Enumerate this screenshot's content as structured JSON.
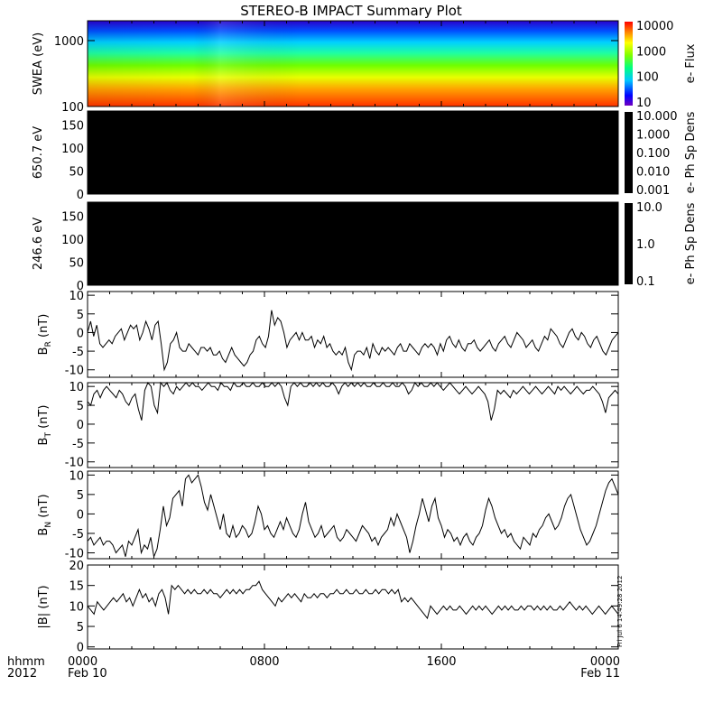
{
  "title": "STEREO-B IMPACT Summary Plot",
  "chart_data": [
    {
      "type": "heatmap",
      "ylabel": "SWEA (eV)",
      "ylim": [
        100,
        2000
      ],
      "y_log": true,
      "yticks": [
        "1000",
        "100"
      ],
      "colorbar": {
        "label": "e- Flux",
        "ticks": [
          "10000",
          "1000",
          "100",
          "10"
        ],
        "scale": "log",
        "range": [
          10,
          10000
        ]
      }
    },
    {
      "type": "heatmap",
      "ylabel": "650.7 eV",
      "ylim": [
        0,
        180
      ],
      "yticks": [
        "0",
        "50",
        "100",
        "150"
      ],
      "fill": "#000000",
      "colorbar": {
        "label": "e- Ph Sp Dens",
        "ticks": [
          "10.000",
          "1.000",
          "0.100",
          "0.010",
          "0.001"
        ],
        "scale": "log",
        "range": [
          0.001,
          10
        ]
      }
    },
    {
      "type": "heatmap",
      "ylabel": "246.6 eV",
      "ylim": [
        0,
        180
      ],
      "yticks": [
        "0",
        "50",
        "100",
        "150"
      ],
      "fill": "#000000",
      "colorbar": {
        "label": "e- Ph Sp Dens",
        "ticks": [
          "10.0",
          "1.0",
          "0.1"
        ],
        "scale": "log",
        "range": [
          0.1,
          10
        ]
      }
    },
    {
      "type": "line",
      "ylabel_main": "B",
      "ylabel_sub": "R",
      "ylabel_unit": " (nT)",
      "ylim": [
        -12,
        11
      ],
      "yticks": [
        "10",
        "5",
        "0",
        "-5",
        "-10"
      ],
      "series": [
        {
          "values": [
            0,
            3,
            -1,
            2,
            -3,
            -4,
            -3,
            -2,
            -3,
            -1,
            0,
            1,
            -2,
            0,
            2,
            1,
            2,
            -2,
            0,
            3,
            1,
            -2,
            2,
            3,
            -3,
            -10,
            -8,
            -3,
            -2,
            0,
            -4,
            -5,
            -5,
            -3,
            -4,
            -5,
            -6,
            -4,
            -4,
            -5,
            -4,
            -6,
            -6,
            -5,
            -7,
            -8,
            -6,
            -4,
            -6,
            -7,
            -8,
            -9,
            -8,
            -6,
            -5,
            -2,
            -1,
            -3,
            -4,
            -1,
            6,
            2,
            4,
            3,
            0,
            -4,
            -2,
            -1,
            0,
            -2,
            0,
            -2,
            -2,
            -1,
            -4,
            -2,
            -3,
            -1,
            -4,
            -3,
            -5,
            -6,
            -5,
            -6,
            -4,
            -8,
            -10,
            -6,
            -5,
            -5,
            -6,
            -4,
            -7,
            -3,
            -5,
            -6,
            -4,
            -5,
            -4,
            -5,
            -6,
            -4,
            -3,
            -5,
            -5,
            -3,
            -4,
            -5,
            -6,
            -4,
            -3,
            -4,
            -3,
            -4,
            -6,
            -3,
            -5,
            -2,
            -1,
            -3,
            -4,
            -2,
            -4,
            -5,
            -3,
            -3,
            -2,
            -4,
            -5,
            -4,
            -3,
            -2,
            -4,
            -5,
            -3,
            -2,
            -1,
            -3,
            -4,
            -2,
            0,
            -1,
            -2,
            -4,
            -3,
            -2,
            -4,
            -5,
            -3,
            -1,
            -2,
            1,
            0,
            -1,
            -3,
            -4,
            -2,
            0,
            1,
            -1,
            -2,
            0,
            -1,
            -3,
            -4,
            -2,
            -1,
            -3,
            -5,
            -6,
            -4,
            -2,
            -1,
            0
          ]
        }
      ]
    },
    {
      "type": "line",
      "ylabel_main": "B",
      "ylabel_sub": "T",
      "ylabel_unit": " (nT)",
      "ylim": [
        -11.5,
        11
      ],
      "yticks": [
        "10",
        "5",
        "0",
        "-5",
        "-10"
      ],
      "series": [
        {
          "values": [
            6,
            5,
            8,
            9,
            7,
            9,
            10,
            9,
            8,
            7,
            9,
            8,
            6,
            5,
            7,
            8,
            4,
            1,
            9,
            11,
            10,
            5,
            3,
            11,
            10,
            11,
            9,
            8,
            10,
            9,
            10,
            11,
            10,
            11,
            10,
            10,
            9,
            10,
            11,
            10,
            10,
            9,
            11,
            10,
            10,
            9,
            11,
            10,
            10,
            11,
            10,
            10,
            11,
            10,
            10,
            11,
            10,
            10,
            11,
            10,
            11,
            10,
            7,
            5,
            10,
            11,
            10,
            11,
            10,
            10,
            11,
            10,
            11,
            10,
            11,
            10,
            10,
            11,
            10,
            8,
            10,
            11,
            10,
            11,
            10,
            11,
            10,
            11,
            10,
            10,
            11,
            10,
            10,
            11,
            10,
            10,
            11,
            10,
            10,
            11,
            10,
            8,
            9,
            11,
            10,
            11,
            10,
            10,
            11,
            10,
            11,
            10,
            9,
            10,
            11,
            10,
            9,
            8,
            9,
            10,
            9,
            8,
            9,
            10,
            9,
            8,
            6,
            1,
            4,
            9,
            8,
            9,
            8,
            7,
            9,
            8,
            9,
            10,
            9,
            8,
            9,
            10,
            9,
            8,
            9,
            10,
            9,
            8,
            10,
            9,
            10,
            9,
            8,
            9,
            10,
            9,
            8,
            9,
            9,
            10,
            9,
            8,
            6,
            3,
            7,
            8,
            9,
            8
          ]
        }
      ]
    },
    {
      "type": "line",
      "ylabel_main": "B",
      "ylabel_sub": "N",
      "ylabel_unit": " (nT)",
      "ylim": [
        -11.5,
        11
      ],
      "yticks": [
        "10",
        "5",
        "0",
        "-5",
        "-10"
      ],
      "series": [
        {
          "values": [
            -7,
            -6,
            -8,
            -7,
            -6,
            -8,
            -7,
            -7,
            -8,
            -10,
            -9,
            -8,
            -11,
            -7,
            -8,
            -6,
            -4,
            -10,
            -8,
            -9,
            -6,
            -11,
            -9,
            -4,
            2,
            -3,
            -1,
            4,
            5,
            6,
            2,
            9,
            10,
            8,
            9,
            10,
            7,
            3,
            1,
            5,
            2,
            -1,
            -4,
            0,
            -5,
            -6,
            -3,
            -6,
            -5,
            -3,
            -4,
            -6,
            -5,
            -2,
            2,
            0,
            -4,
            -3,
            -5,
            -6,
            -4,
            -2,
            -4,
            -1,
            -3,
            -5,
            -6,
            -4,
            0,
            3,
            -2,
            -4,
            -6,
            -5,
            -3,
            -6,
            -5,
            -4,
            -3,
            -6,
            -7,
            -6,
            -4,
            -5,
            -6,
            -7,
            -5,
            -3,
            -4,
            -5,
            -7,
            -6,
            -8,
            -6,
            -5,
            -4,
            -1,
            -3,
            0,
            -2,
            -4,
            -6,
            -10,
            -7,
            -3,
            0,
            4,
            1,
            -2,
            2,
            4,
            -1,
            -3,
            -6,
            -4,
            -5,
            -7,
            -6,
            -8,
            -6,
            -5,
            -7,
            -8,
            -6,
            -5,
            -3,
            1,
            4,
            2,
            -1,
            -3,
            -5,
            -4,
            -6,
            -5,
            -7,
            -8,
            -9,
            -6,
            -7,
            -8,
            -5,
            -6,
            -4,
            -3,
            -1,
            0,
            -2,
            -4,
            -3,
            -1,
            2,
            4,
            5,
            2,
            -1,
            -4,
            -6,
            -8,
            -7,
            -5,
            -3,
            0,
            3,
            6,
            8,
            9,
            7,
            5
          ]
        }
      ]
    },
    {
      "type": "line",
      "ylabel_main": "|B|",
      "ylabel_sub": "",
      "ylabel_unit": " (nT)",
      "ylim": [
        -0.5,
        20
      ],
      "yticks": [
        "20",
        "15",
        "10",
        "5",
        "0"
      ],
      "series": [
        {
          "values": [
            10,
            9,
            8,
            11,
            10,
            9,
            10,
            11,
            12,
            11,
            12,
            13,
            11,
            12,
            10,
            12,
            14,
            12,
            13,
            11,
            12,
            10,
            13,
            14,
            12,
            8,
            15,
            14,
            15,
            14,
            13,
            14,
            13,
            14,
            13,
            13,
            14,
            13,
            14,
            13,
            13,
            12,
            13,
            14,
            13,
            14,
            13,
            14,
            13,
            14,
            14,
            15,
            15,
            16,
            14,
            13,
            12,
            11,
            10,
            12,
            11,
            12,
            13,
            12,
            13,
            12,
            11,
            13,
            12,
            12,
            13,
            12,
            13,
            13,
            12,
            13,
            13,
            14,
            13,
            13,
            14,
            13,
            13,
            14,
            13,
            13,
            14,
            13,
            13,
            14,
            13,
            14,
            14,
            13,
            14,
            13,
            14,
            11,
            12,
            11,
            12,
            11,
            10,
            9,
            8,
            7,
            10,
            9,
            8,
            9,
            10,
            9,
            10,
            9,
            9,
            10,
            9,
            8,
            9,
            10,
            9,
            10,
            9,
            10,
            9,
            8,
            9,
            10,
            9,
            10,
            9,
            10,
            9,
            9,
            10,
            9,
            10,
            10,
            9,
            10,
            9,
            10,
            9,
            10,
            9,
            9,
            10,
            9,
            10,
            11,
            10,
            9,
            10,
            9,
            10,
            9,
            8,
            9,
            10,
            9,
            8,
            9,
            10,
            9,
            8
          ]
        }
      ]
    }
  ],
  "xaxis": {
    "ticks": [
      "0000",
      "0800",
      "1600",
      "0000"
    ],
    "dates": [
      "Feb 10",
      "",
      "",
      "Feb 11"
    ],
    "label_line1": "hhmm",
    "label_line2": "2012"
  },
  "timestamp": "Fri Jul 6 14:49:28 2012",
  "colors": {
    "black": "#000000",
    "line": "#000000"
  }
}
